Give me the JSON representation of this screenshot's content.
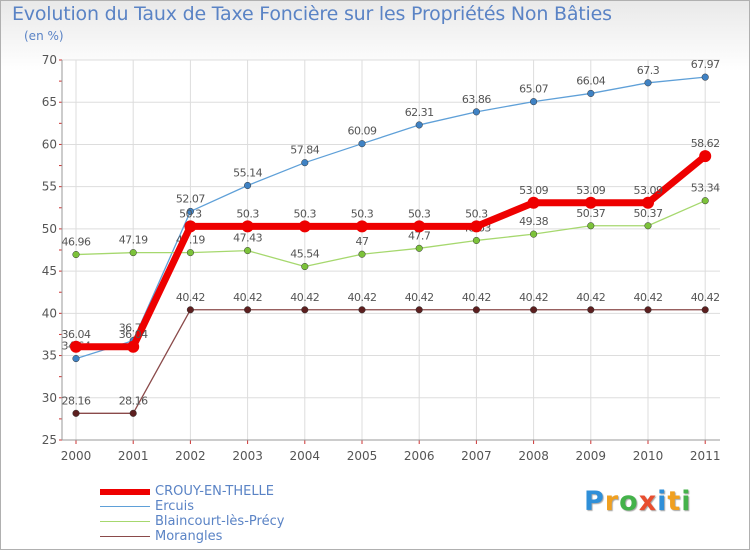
{
  "chart_data": {
    "type": "line",
    "title": "Evolution du Taux de Taxe Foncière sur les Propriétés Non Bâties",
    "ylabel": "(en %)",
    "xlabel": "",
    "ylim": [
      25,
      70
    ],
    "yticks": [
      "25",
      "30",
      "35",
      "40",
      "45",
      "50",
      "55",
      "60",
      "65",
      "70"
    ],
    "categories": [
      "2000",
      "2001",
      "2002",
      "2003",
      "2004",
      "2005",
      "2006",
      "2007",
      "2008",
      "2009",
      "2010",
      "2011"
    ],
    "grid": true,
    "series": [
      {
        "name": "Ercuis",
        "color": "#5fa0d8",
        "marker": "#3f82c4",
        "values": [
          34.64,
          36.77,
          52.07,
          55.14,
          57.84,
          60.09,
          62.31,
          63.86,
          65.07,
          66.04,
          67.3,
          67.97
        ],
        "labels": [
          "34.64",
          "36.77",
          "52.07",
          "55.14",
          "57.84",
          "60.09",
          "62.31",
          "63.86",
          "65.07",
          "66.04",
          "67.3",
          "67.97"
        ]
      },
      {
        "name": "Blaincourt-lès-Précy",
        "color": "#a6d86e",
        "marker": "#7cc23a",
        "values": [
          46.96,
          47.19,
          47.19,
          47.43,
          45.54,
          47,
          47.7,
          48.63,
          49.38,
          50.37,
          50.37,
          53.34
        ],
        "labels": [
          "46.96",
          "47.19",
          "47.19",
          "47.43",
          "45.54",
          "47",
          "47.7",
          "48.63",
          "49.38",
          "50.37",
          "50.37",
          "53.34"
        ]
      },
      {
        "name": "Morangles",
        "color": "#8a4a4a",
        "marker": "#5c1f1f",
        "values": [
          28.16,
          28.16,
          40.42,
          40.42,
          40.42,
          40.42,
          40.42,
          40.42,
          40.42,
          40.42,
          40.42,
          40.42
        ],
        "labels": [
          "28.16",
          "28.16",
          "40.42",
          "40.42",
          "40.42",
          "40.42",
          "40.42",
          "40.42",
          "40.42",
          "40.42",
          "40.42",
          "40.42"
        ]
      },
      {
        "name": "CROUY-EN-THELLE",
        "color": "#ee0000",
        "marker": "#ee0000",
        "values": [
          36.04,
          36.04,
          50.3,
          50.3,
          50.3,
          50.3,
          50.3,
          50.3,
          53.09,
          53.09,
          53.09,
          58.62
        ],
        "labels": [
          "36.04",
          "36.04",
          "50.3",
          "50.3",
          "50.3",
          "50.3",
          "50.3",
          "50.3",
          "53.09",
          "53.09",
          "53.09",
          "58.62"
        ]
      }
    ],
    "legend": {
      "position": "bottom-left",
      "order": [
        "CROUY-EN-THELLE",
        "Ercuis",
        "Blaincourt-lès-Précy",
        "Morangles"
      ]
    }
  },
  "logo": {
    "letters": [
      "P",
      "r",
      "o",
      "x",
      "i",
      "t",
      "i"
    ],
    "colors": [
      "#2f8fd8",
      "#f0a020",
      "#44b24a",
      "#e84e2f",
      "#2f8fd8",
      "#f0a020",
      "#44b24a"
    ]
  }
}
